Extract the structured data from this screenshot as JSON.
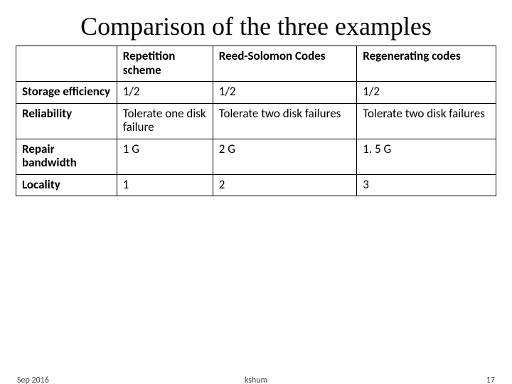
{
  "title": "Comparison of the three examples",
  "table": {
    "columns": [
      "",
      "Repetition scheme",
      "Reed-Solomon Codes",
      "Regenerating codes"
    ],
    "rows": [
      {
        "label": "Storage efficiency",
        "cells": [
          "1/2",
          "1/2",
          "1/2"
        ]
      },
      {
        "label": "Reliability",
        "cells": [
          "Tolerate one disk failure",
          "Tolerate two disk failures",
          "Tolerate two disk failures"
        ]
      },
      {
        "label": "Repair bandwidth",
        "cells": [
          "1 G",
          "2 G",
          "1. 5 G"
        ]
      },
      {
        "label": "Locality",
        "cells": [
          "1",
          "2",
          "3"
        ]
      }
    ],
    "border_color": "#000000",
    "header_font_weight": "700",
    "cell_font_size": 17,
    "col_widths_pct": [
      21,
      20,
      30,
      29
    ]
  },
  "footer": {
    "date": "Sep 2016",
    "author": "kshum",
    "page": "17"
  },
  "colors": {
    "background": "#ffffff",
    "text": "#000000",
    "footer_text": "#404040"
  },
  "typography": {
    "title_font": "Times New Roman",
    "title_fontsize": 36,
    "body_font": "Calibri",
    "footer_fontsize": 12
  }
}
